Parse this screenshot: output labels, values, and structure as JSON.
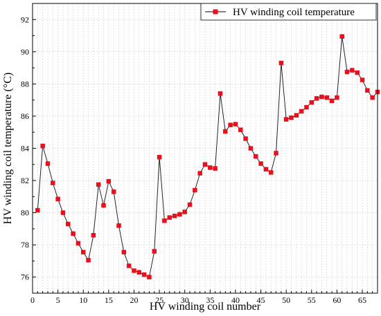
{
  "chart_data": {
    "type": "line",
    "xlabel": "HV winding coil number",
    "ylabel": "HV winding coil temperature (°C)",
    "xlim": [
      0,
      68
    ],
    "ylim": [
      75,
      93
    ],
    "xticks": [
      0,
      5,
      10,
      15,
      20,
      25,
      30,
      35,
      40,
      45,
      50,
      55,
      60,
      65
    ],
    "yticks": [
      76,
      78,
      80,
      82,
      84,
      86,
      88,
      90,
      92
    ],
    "grid": "dotted vertical and horizontal",
    "legend_position": "top-right",
    "series": [
      {
        "name": "HV winding coil temperature",
        "color": "#e8101c",
        "marker": "square",
        "x": [
          1,
          2,
          3,
          4,
          5,
          6,
          7,
          8,
          9,
          10,
          11,
          12,
          13,
          14,
          15,
          16,
          17,
          18,
          19,
          20,
          21,
          22,
          23,
          24,
          25,
          26,
          27,
          28,
          29,
          30,
          31,
          32,
          33,
          34,
          35,
          36,
          37,
          38,
          39,
          40,
          41,
          42,
          43,
          44,
          45,
          46,
          47,
          48,
          49,
          50,
          51,
          52,
          53,
          54,
          55,
          56,
          57,
          58,
          59,
          60,
          61,
          62,
          63,
          64,
          65,
          66,
          67,
          68
        ],
        "y": [
          80.15,
          84.15,
          83.05,
          81.85,
          80.85,
          80.0,
          79.3,
          78.7,
          78.1,
          77.55,
          77.05,
          78.6,
          81.75,
          80.45,
          81.95,
          81.3,
          79.2,
          77.55,
          76.7,
          76.4,
          76.3,
          76.15,
          76.0,
          77.6,
          83.45,
          79.5,
          79.7,
          79.8,
          79.9,
          80.05,
          80.5,
          81.4,
          82.45,
          83.0,
          82.8,
          82.75,
          87.4,
          85.05,
          85.45,
          85.5,
          85.15,
          84.6,
          84.0,
          83.5,
          83.05,
          82.7,
          82.5,
          83.7,
          89.3,
          85.8,
          85.9,
          86.05,
          86.3,
          86.55,
          86.85,
          87.1,
          87.2,
          87.15,
          86.95,
          87.15,
          90.95,
          88.75,
          88.85,
          88.7,
          88.25,
          87.6,
          87.15,
          87.5
        ]
      }
    ]
  }
}
